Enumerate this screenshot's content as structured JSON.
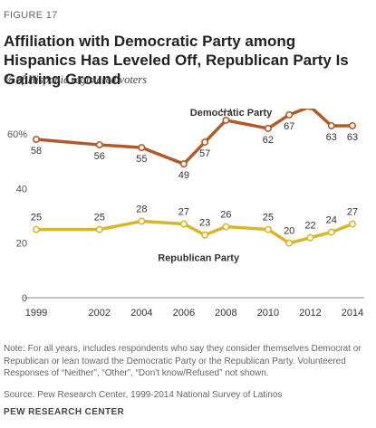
{
  "figure_label": "FIGURE 17",
  "title": "Affiliation with Democratic Party among Hispanics Has Leveled Off, Republican Party Is Gaining Ground",
  "subtitle": "% of Hispanic registered voters",
  "note": "Note: For all years, includes respondents who say they consider themselves Democrat or Republican or lean toward the Democratic Party or the Republican Party. Volunteered Responses of “Neither”, “Other”, “Don't know/Refused” not shown.",
  "source": "Source: Pew Research Center, 1999-2014 National Survey of Latinos",
  "footer": "PEW RESEARCH CENTER",
  "colors": {
    "democratic": "#B25A27",
    "republican": "#D9B52B",
    "axis": "#888888",
    "text": "#333333"
  },
  "chart_data": {
    "type": "line",
    "x": [
      1999,
      2002,
      2004,
      2006,
      2007,
      2008,
      2010,
      2011,
      2012,
      2013,
      2014
    ],
    "x_tick_labels": [
      "1999",
      "2002",
      "2004",
      "2006",
      "2008",
      "2010",
      "2012",
      "2014"
    ],
    "x_tick_values": [
      1999,
      2002,
      2004,
      2006,
      2008,
      2010,
      2012,
      2014
    ],
    "y_tick_labels": [
      "0",
      "20",
      "40",
      "60%"
    ],
    "y_tick_values": [
      0,
      20,
      40,
      60
    ],
    "ylim": [
      0,
      72
    ],
    "xlim": [
      1999,
      2014
    ],
    "grid": false,
    "series": [
      {
        "name": "Democratic Party",
        "color": "#B25A27",
        "values": [
          58,
          56,
          55,
          49,
          57,
          65,
          62,
          67,
          70,
          63,
          63
        ]
      },
      {
        "name": "Republican Party",
        "color": "#D9B52B",
        "values": [
          25,
          25,
          28,
          27,
          23,
          26,
          25,
          20,
          22,
          24,
          27
        ]
      }
    ]
  }
}
